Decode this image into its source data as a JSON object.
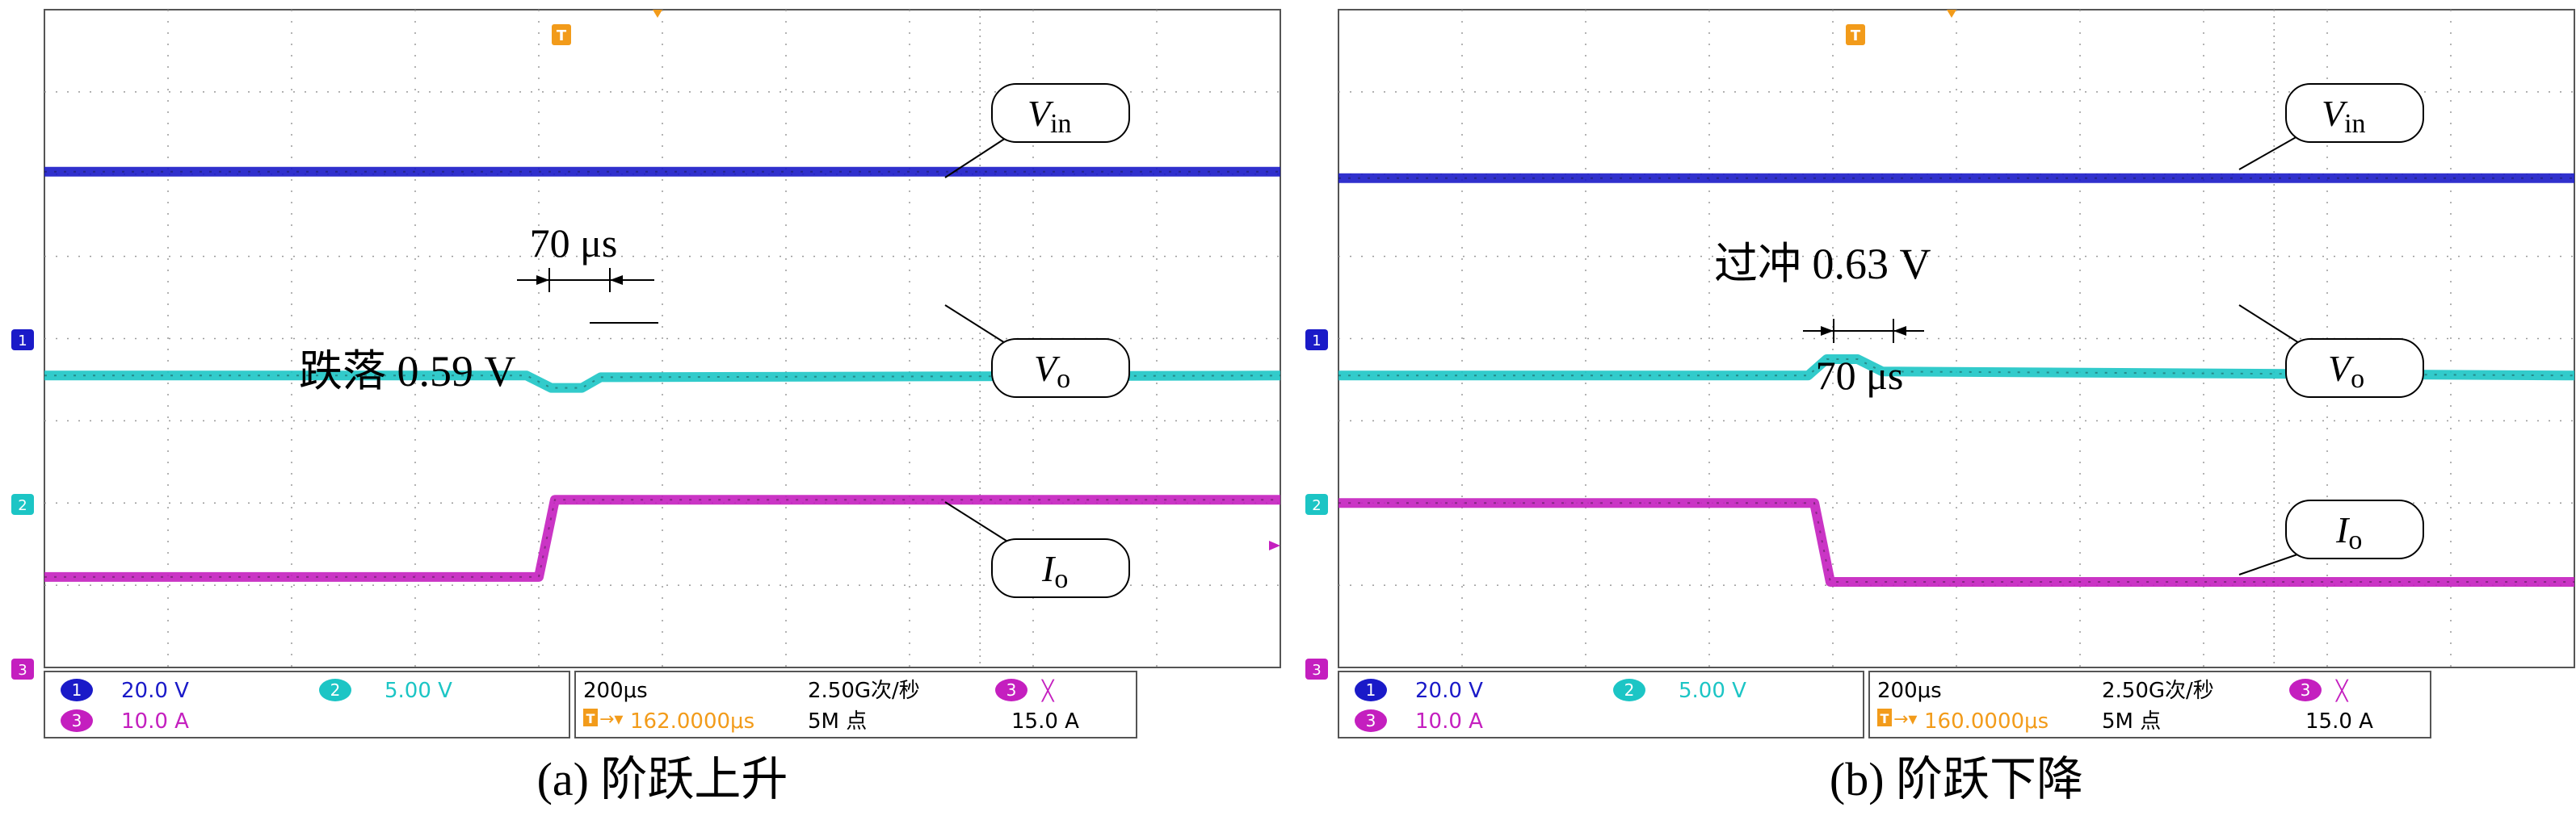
{
  "panels": [
    {
      "caption": "(a) 阶跃上升",
      "channels": [
        {
          "num": "1",
          "label": "V",
          "sub": "in",
          "color": "#1a1ac8"
        },
        {
          "num": "2",
          "label": "V",
          "sub": "o",
          "color": "#1cc5c5"
        },
        {
          "num": "3",
          "label": "I",
          "sub": "o",
          "color": "#c41fbf"
        }
      ],
      "annotations": {
        "time": "70 μs",
        "event": "跌落 0.59 V"
      },
      "info": {
        "ch1_scale": "20.0 V",
        "ch2_scale": "5.00 V",
        "ch3_scale": "10.0 A",
        "timebase": "200μs",
        "sample_rate": "2.50G次/秒",
        "trigger_pos": "162.0000μs",
        "record_length": "5M 点",
        "trig_ch": "3",
        "trig_slope": "╳",
        "trig_level": "15.0 A"
      }
    },
    {
      "caption": "(b) 阶跃下降",
      "channels": [
        {
          "num": "1",
          "label": "V",
          "sub": "in",
          "color": "#1a1ac8"
        },
        {
          "num": "2",
          "label": "V",
          "sub": "o",
          "color": "#1cc5c5"
        },
        {
          "num": "3",
          "label": "I",
          "sub": "o",
          "color": "#c41fbf"
        }
      ],
      "annotations": {
        "time": "70 μs",
        "event": "过冲 0.63 V"
      },
      "info": {
        "ch1_scale": "20.0 V",
        "ch2_scale": "5.00 V",
        "ch3_scale": "10.0 A",
        "timebase": "200μs",
        "sample_rate": "2.50G次/秒",
        "trigger_pos": "160.0000μs",
        "record_length": "5M 点",
        "trig_ch": "3",
        "trig_slope": "╳",
        "trig_level": "15.0 A"
      }
    }
  ],
  "chart_data": [
    {
      "type": "line",
      "x_divisions": 10,
      "y_divisions": 8,
      "trigger_x_div": 7.57,
      "series": [
        {
          "name": "Vin",
          "channel": "1",
          "points": [
            [
              0,
              1.97
            ],
            [
              10,
              1.97
            ]
          ]
        },
        {
          "name": "Vo",
          "channel": "2",
          "points": [
            [
              0,
              4.45
            ],
            [
              3.9,
              4.45
            ],
            [
              4.1,
              4.6
            ],
            [
              4.35,
              4.6
            ],
            [
              4.5,
              4.47
            ],
            [
              10,
              4.45
            ]
          ]
        },
        {
          "name": "Io",
          "channel": "3",
          "points": [
            [
              0,
              6.9
            ],
            [
              4.0,
              6.9
            ],
            [
              4.13,
              5.96
            ],
            [
              10,
              5.96
            ]
          ]
        }
      ]
    },
    {
      "type": "line",
      "x_divisions": 10,
      "y_divisions": 8,
      "trigger_x_div": 7.57,
      "series": [
        {
          "name": "Vin",
          "channel": "1",
          "points": [
            [
              0,
              2.05
            ],
            [
              10,
              2.05
            ]
          ]
        },
        {
          "name": "Vo",
          "channel": "2",
          "points": [
            [
              0,
              4.45
            ],
            [
              3.8,
              4.45
            ],
            [
              3.95,
              4.25
            ],
            [
              4.2,
              4.25
            ],
            [
              4.4,
              4.4
            ],
            [
              10,
              4.45
            ]
          ]
        },
        {
          "name": "Io",
          "channel": "3",
          "points": [
            [
              0,
              6.0
            ],
            [
              3.85,
              6.0
            ],
            [
              3.98,
              6.96
            ],
            [
              10,
              6.96
            ]
          ]
        }
      ]
    }
  ]
}
